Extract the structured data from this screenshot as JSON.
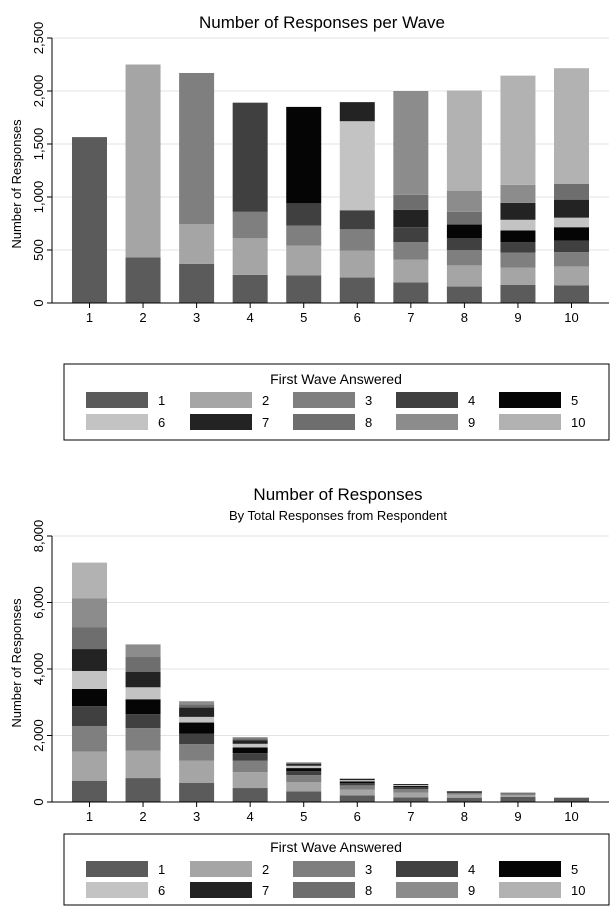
{
  "colors": {
    "1": "#5b5b5b",
    "2": "#a5a5a5",
    "3": "#7f7f7f",
    "4": "#404040",
    "5": "#050505",
    "6": "#c3c3c3",
    "7": "#232323",
    "8": "#6e6e6e",
    "9": "#8c8c8c",
    "10": "#b2b2b2"
  },
  "chart_data": [
    {
      "type": "bar",
      "stacked": true,
      "title": "Number of Responses per Wave",
      "subtitle": "",
      "xlabel": "",
      "ylabel": "Number of Responses",
      "ylim": [
        0,
        2500
      ],
      "yticks": [
        0,
        500,
        1000,
        1500,
        2000,
        2500
      ],
      "ytick_labels": [
        "0",
        "500",
        "1,000",
        "1,500",
        "2,000",
        "2,500"
      ],
      "grid": true,
      "legend_position": "bottom",
      "legend_title": "First Wave Answered",
      "categories": [
        "1",
        "2",
        "3",
        "4",
        "5",
        "6",
        "7",
        "8",
        "9",
        "10"
      ],
      "series": [
        {
          "name": "1",
          "values": [
            1565,
            430,
            370,
            265,
            260,
            240,
            195,
            155,
            170,
            165
          ]
        },
        {
          "name": "2",
          "values": [
            0,
            1820,
            375,
            345,
            280,
            255,
            215,
            200,
            165,
            180
          ]
        },
        {
          "name": "3",
          "values": [
            0,
            0,
            1425,
            250,
            190,
            200,
            165,
            145,
            140,
            135
          ]
        },
        {
          "name": "4",
          "values": [
            0,
            0,
            0,
            1030,
            210,
            180,
            140,
            110,
            100,
            110
          ]
        },
        {
          "name": "5",
          "values": [
            0,
            0,
            0,
            0,
            910,
            0,
            0,
            130,
            110,
            125
          ]
        },
        {
          "name": "6",
          "values": [
            0,
            0,
            0,
            0,
            0,
            840,
            0,
            0,
            100,
            90
          ]
        },
        {
          "name": "7",
          "values": [
            0,
            0,
            0,
            0,
            0,
            180,
            165,
            0,
            160,
            170
          ]
        },
        {
          "name": "8",
          "values": [
            0,
            0,
            0,
            0,
            0,
            0,
            140,
            120,
            0,
            150
          ]
        },
        {
          "name": "9",
          "values": [
            0,
            0,
            0,
            0,
            0,
            0,
            980,
            200,
            170,
            0
          ]
        },
        {
          "name": "10",
          "values": [
            0,
            0,
            0,
            0,
            0,
            0,
            0,
            945,
            1030,
            1090
          ]
        }
      ]
    },
    {
      "type": "bar",
      "stacked": true,
      "title": "Number of Responses",
      "subtitle": "By Total Responses from Respondent",
      "xlabel": "",
      "ylabel": "Number of Responses",
      "ylim": [
        0,
        8000
      ],
      "yticks": [
        0,
        2000,
        4000,
        6000,
        8000
      ],
      "ytick_labels": [
        "0",
        "2,000",
        "4,000",
        "6,000",
        "8,000"
      ],
      "grid": true,
      "legend_position": "bottom",
      "legend_title": "First Wave Answered",
      "categories": [
        "1",
        "2",
        "3",
        "4",
        "5",
        "6",
        "7",
        "8",
        "9",
        "10"
      ],
      "series": [
        {
          "name": "1",
          "values": [
            640,
            720,
            580,
            420,
            320,
            200,
            140,
            130,
            150,
            130
          ]
        },
        {
          "name": "2",
          "values": [
            880,
            820,
            660,
            480,
            280,
            170,
            140,
            90,
            60,
            0
          ]
        },
        {
          "name": "3",
          "values": [
            760,
            680,
            500,
            340,
            210,
            130,
            110,
            50,
            50,
            0
          ]
        },
        {
          "name": "4",
          "values": [
            600,
            420,
            320,
            230,
            120,
            70,
            60,
            30,
            20,
            0
          ]
        },
        {
          "name": "5",
          "values": [
            520,
            450,
            330,
            170,
            90,
            50,
            30,
            20,
            0,
            0
          ]
        },
        {
          "name": "6",
          "values": [
            540,
            360,
            170,
            110,
            70,
            40,
            30,
            0,
            0,
            0
          ]
        },
        {
          "name": "7",
          "values": [
            660,
            460,
            280,
            110,
            60,
            40,
            30,
            0,
            0,
            0
          ]
        },
        {
          "name": "8",
          "values": [
            660,
            450,
            100,
            60,
            40,
            0,
            0,
            0,
            0,
            0
          ]
        },
        {
          "name": "9",
          "values": [
            860,
            380,
            90,
            30,
            0,
            0,
            0,
            0,
            0,
            0
          ]
        },
        {
          "name": "10",
          "values": [
            1080,
            0,
            0,
            0,
            0,
            0,
            0,
            0,
            0,
            0
          ]
        }
      ]
    }
  ]
}
